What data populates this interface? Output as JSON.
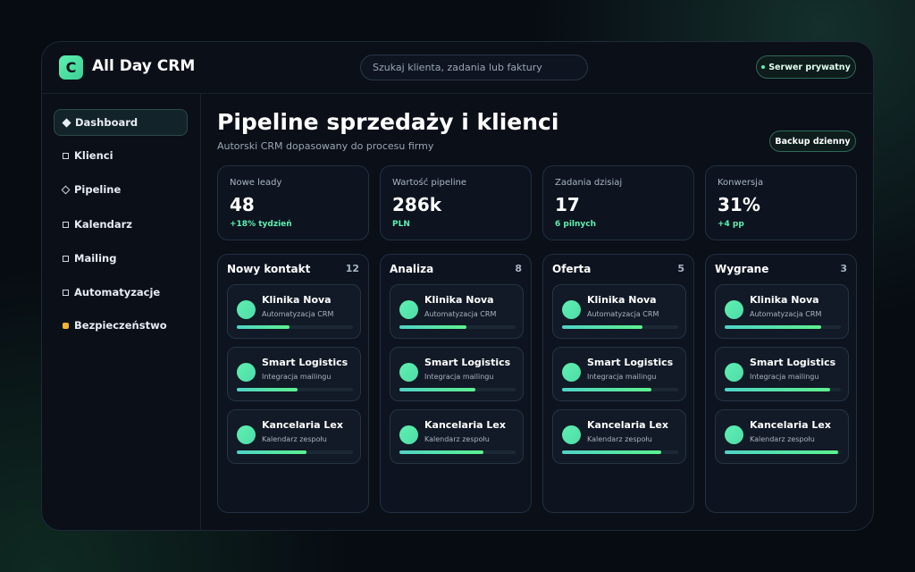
{
  "app": {
    "logo_icon": "C",
    "name": "All Day CRM",
    "search_placeholder": "Szukaj klienta, zadania lub faktury",
    "server_badge": "Serwer prywatny"
  },
  "sidebar": {
    "active": 0,
    "items": [
      "Dashboard",
      "Klienci",
      "Pipeline",
      "Kalendarz",
      "Mailing",
      "Automatyzacje",
      "Bezpieczeństwo"
    ]
  },
  "page": {
    "title": "Pipeline sprzedaży i klienci",
    "subtitle": "Autorski CRM dopasowany do procesu firmy",
    "backup_button": "Backup dzienny"
  },
  "stats": [
    {
      "label": "Nowe leady",
      "value": 48,
      "note": "+18% tydzień"
    },
    {
      "label": "Wartość pipeline",
      "value": "286k",
      "note": "PLN"
    },
    {
      "label": "Zadania dzisiaj",
      "value": 17,
      "note": "6 pilnych"
    },
    {
      "label": "Konwersja",
      "value": "31%",
      "note": "+4 pp"
    }
  ],
  "pipeline": [
    {
      "name": "Nowy kontakt",
      "count": 12,
      "cards": [
        {
          "company": "Klinika Nova",
          "task": "Automatyzacja CRM",
          "progress": 45
        },
        {
          "company": "Smart Logistics",
          "task": "Integracja mailingu",
          "progress": 52
        },
        {
          "company": "Kancelaria Lex",
          "task": "Kalendarz zespołu",
          "progress": 60
        }
      ]
    },
    {
      "name": "Analiza",
      "count": 8,
      "cards": [
        {
          "company": "Klinika Nova",
          "task": "Automatyzacja CRM",
          "progress": 58
        },
        {
          "company": "Smart Logistics",
          "task": "Integracja mailingu",
          "progress": 65
        },
        {
          "company": "Kancelaria Lex",
          "task": "Kalendarz zespołu",
          "progress": 72
        }
      ]
    },
    {
      "name": "Oferta",
      "count": 5,
      "cards": [
        {
          "company": "Klinika Nova",
          "task": "Automatyzacja CRM",
          "progress": 69
        },
        {
          "company": "Smart Logistics",
          "task": "Integracja mailingu",
          "progress": 77
        },
        {
          "company": "Kancelaria Lex",
          "task": "Kalendarz zespołu",
          "progress": 85
        }
      ]
    },
    {
      "name": "Wygrane",
      "count": 3,
      "cards": [
        {
          "company": "Klinika Nova",
          "task": "Automatyzacja CRM",
          "progress": 83
        },
        {
          "company": "Smart Logistics",
          "task": "Integracja mailingu",
          "progress": 91
        },
        {
          "company": "Kancelaria Lex",
          "task": "Kalendarz zespołu",
          "progress": 98
        }
      ]
    }
  ]
}
